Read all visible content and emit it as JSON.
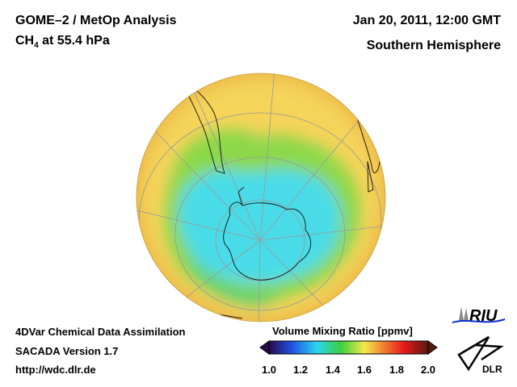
{
  "header": {
    "title": "GOME–2 / MetOp Analysis",
    "species": "CH",
    "species_sub": "4",
    "level": " at 55.4 hPa",
    "datetime": "Jan 20, 2011, 12:00 GMT",
    "region": "Southern Hemisphere"
  },
  "footer": {
    "line1": "4DVar Chemical Data Assimilation",
    "line2": "SACADA Version 1.7",
    "line3": "http://wdc.dlr.de"
  },
  "colorbar": {
    "title": "Volume Mixing Ratio [ppmv]",
    "ticks": [
      "1.0",
      "1.2",
      "1.4",
      "1.6",
      "1.8",
      "2.0"
    ],
    "range": [
      1.0,
      2.0
    ],
    "colors": [
      "#2a0a4a",
      "#1f4fe0",
      "#2ad4f0",
      "#3ad040",
      "#f5e84a",
      "#f08030",
      "#e81818",
      "#5a1a10"
    ]
  },
  "logos": {
    "riu": "RIU",
    "dlr": "DLR"
  }
}
